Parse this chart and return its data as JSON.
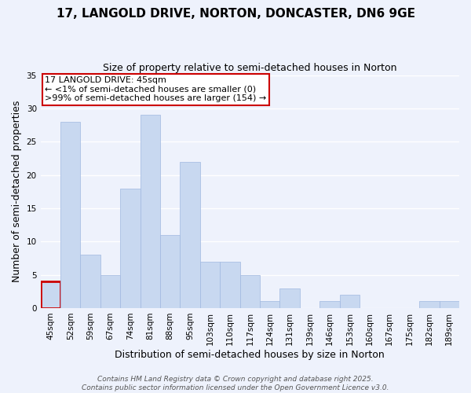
{
  "title": "17, LANGOLD DRIVE, NORTON, DONCASTER, DN6 9GE",
  "subtitle": "Size of property relative to semi-detached houses in Norton",
  "xlabel": "Distribution of semi-detached houses by size in Norton",
  "ylabel": "Number of semi-detached properties",
  "bar_labels": [
    "45sqm",
    "52sqm",
    "59sqm",
    "67sqm",
    "74sqm",
    "81sqm",
    "88sqm",
    "95sqm",
    "103sqm",
    "110sqm",
    "117sqm",
    "124sqm",
    "131sqm",
    "139sqm",
    "146sqm",
    "153sqm",
    "160sqm",
    "167sqm",
    "175sqm",
    "182sqm",
    "189sqm"
  ],
  "bar_values": [
    4,
    28,
    8,
    5,
    18,
    29,
    11,
    22,
    7,
    7,
    5,
    1,
    3,
    0,
    1,
    2,
    0,
    0,
    0,
    1,
    1
  ],
  "bar_color": "#c8d8f0",
  "bar_edge_color": "#a0b8e0",
  "highlight_index": 0,
  "highlight_edge_color": "#cc0000",
  "ylim": [
    0,
    35
  ],
  "yticks": [
    0,
    5,
    10,
    15,
    20,
    25,
    30,
    35
  ],
  "annotation_title": "17 LANGOLD DRIVE: 45sqm",
  "annotation_line1": "← <1% of semi-detached houses are smaller (0)",
  "annotation_line2": ">99% of semi-detached houses are larger (154) →",
  "annotation_box_facecolor": "#ffffff",
  "annotation_box_edgecolor": "#cc0000",
  "footer_line1": "Contains HM Land Registry data © Crown copyright and database right 2025.",
  "footer_line2": "Contains public sector information licensed under the Open Government Licence v3.0.",
  "background_color": "#eef2fc",
  "grid_color": "#ffffff",
  "title_fontsize": 11,
  "subtitle_fontsize": 9,
  "axis_label_fontsize": 9,
  "tick_fontsize": 7.5,
  "annotation_fontsize": 8,
  "footer_fontsize": 6.5
}
